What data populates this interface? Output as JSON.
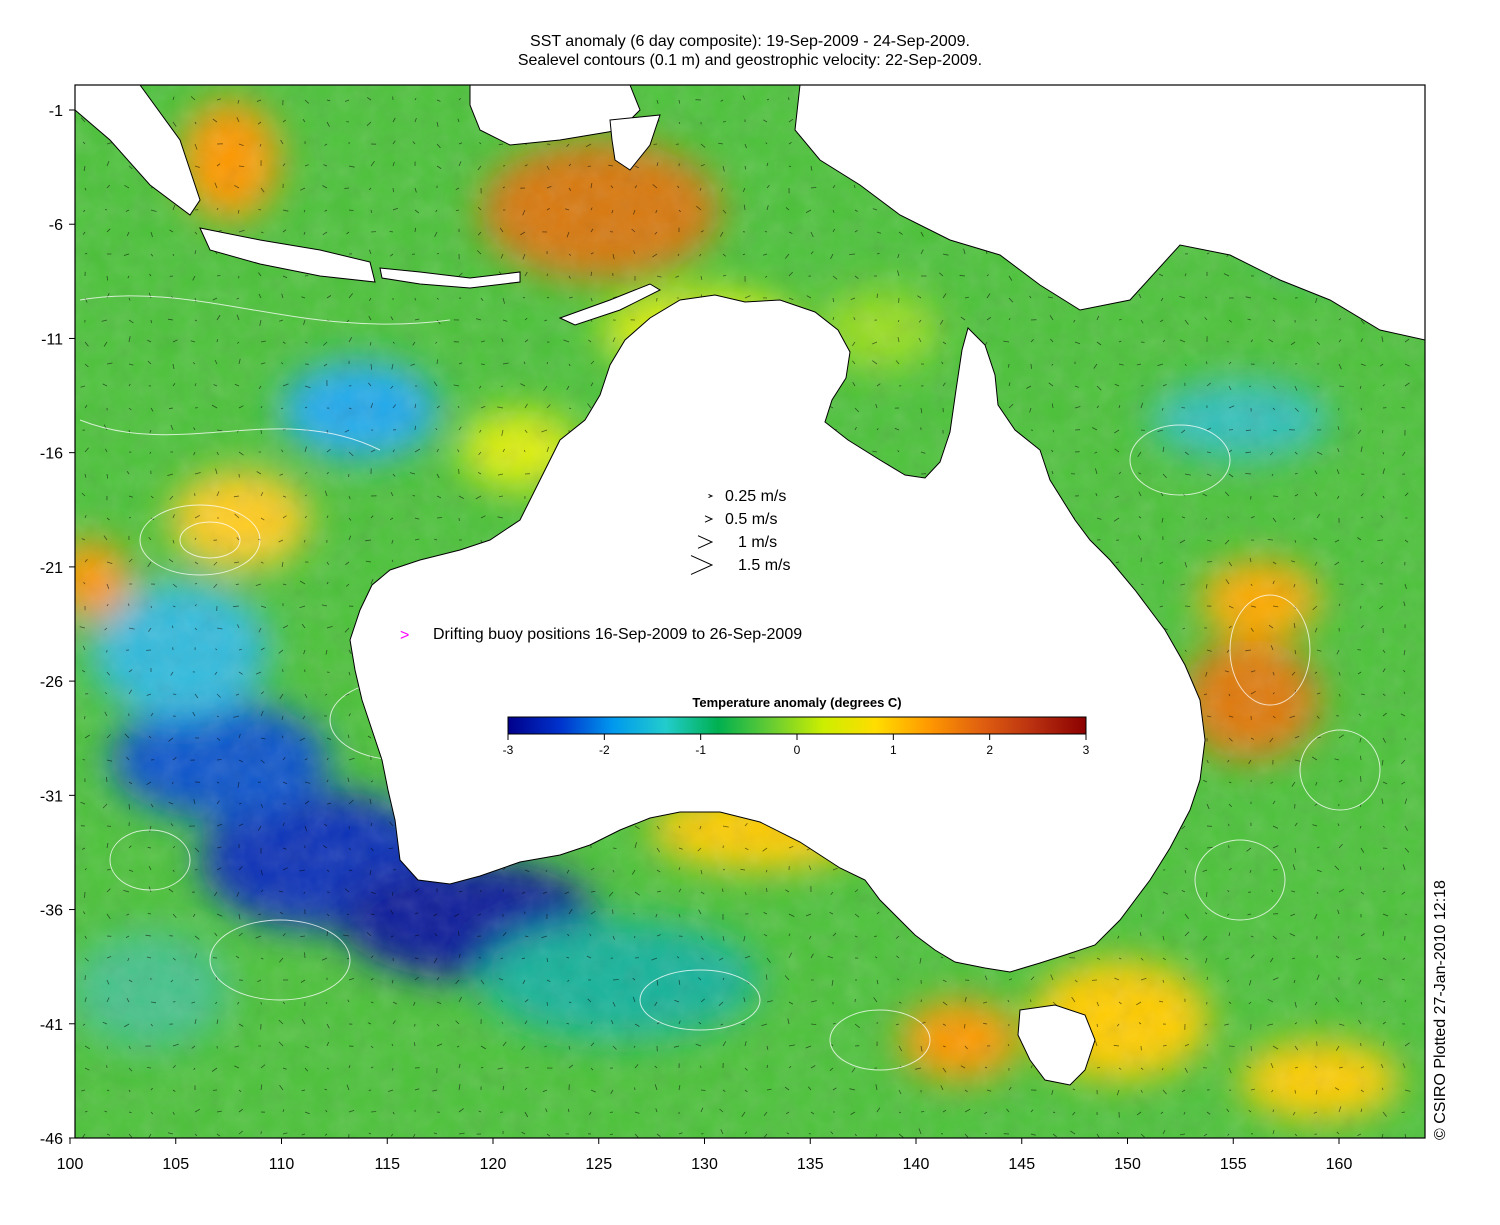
{
  "title": {
    "line1": "SST anomaly (6 day composite): 19-Sep-2009 - 24-Sep-2009.",
    "line2": "Sealevel contours (0.1 m) and geostrophic velocity: 22-Sep-2009."
  },
  "axes": {
    "lon_ticks": [
      "100",
      "105",
      "110",
      "115",
      "120",
      "125",
      "130",
      "135",
      "140",
      "145",
      "150",
      "155",
      "160"
    ],
    "lat_ticks": [
      "-1",
      "-6",
      "-11",
      "-16",
      "-21",
      "-26",
      "-31",
      "-36",
      "-41",
      "-46"
    ]
  },
  "velocity_legend": [
    {
      "label": "0.25 m/s",
      "speed": 0.25
    },
    {
      "label": "0.5 m/s",
      "speed": 0.5
    },
    {
      "label": "1 m/s",
      "speed": 1
    },
    {
      "label": "1.5 m/s",
      "speed": 1.5
    }
  ],
  "buoy_legend": {
    "symbol": ">",
    "label": "Drifting buoy positions 16-Sep-2009 to 26-Sep-2009",
    "color": "#ff00ff"
  },
  "colorbar": {
    "title": "Temperature anomaly (degrees C)",
    "ticks": [
      "-3",
      "-2",
      "-1",
      "0",
      "1",
      "2",
      "3"
    ],
    "range": [
      -3,
      3
    ],
    "colors": [
      "#00008b",
      "#0033cc",
      "#0099ee",
      "#22cccc",
      "#00b050",
      "#66cc33",
      "#ccee00",
      "#ffdd00",
      "#ff9900",
      "#e06010",
      "#b83010",
      "#8b0000"
    ]
  },
  "credit": "© CSIRO Plotted 27-Jan-2010 12:18",
  "palette": {
    "land": "#ffffff",
    "coast": "#000000",
    "contour": "#ffffff",
    "arrow": "#000000"
  }
}
